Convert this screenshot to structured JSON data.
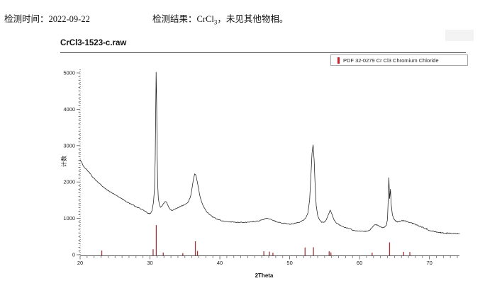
{
  "header": {
    "time_label": "检测时间：",
    "time_value": "2022-09-22",
    "result_label": "检测结果：",
    "result_formula_base": "CrCl",
    "result_formula_sub": "3",
    "result_suffix": "，未见其他物相。"
  },
  "chart": {
    "title": "CrCl3-1523-c.raw",
    "colors": {
      "curve": "#1a1a1a",
      "reference_sticks": "#a8343a",
      "legend_marker": "#cf2030",
      "axis": "#555555",
      "tick_text": "#222222"
    }
  },
  "chart_data": {
    "type": "line",
    "title": "CrCl3-1523-c.raw",
    "xlabel": "2Theta",
    "ylabel": "计数",
    "xlim": [
      20,
      74.3
    ],
    "ylim": [
      0,
      5000
    ],
    "x_major_ticks": [
      20,
      30,
      40,
      50,
      60,
      70
    ],
    "x_minor_step": 1,
    "y_major_ticks": [
      0,
      1000,
      2000,
      3000,
      4000,
      5000
    ],
    "y_minor_step": 100,
    "grid": false,
    "legend": [
      "PDF 32-0279 Cr Cl3 Chromium Chloride"
    ],
    "legend_position": "top-right",
    "series": [
      {
        "name": "CrCl3-1523-c.raw",
        "type": "line",
        "points": [
          [
            20,
            2620
          ],
          [
            20.3,
            2500
          ],
          [
            20.6,
            2400
          ],
          [
            21,
            2330
          ],
          [
            21.4,
            2240
          ],
          [
            21.8,
            2140
          ],
          [
            22.2,
            2060
          ],
          [
            22.6,
            1980
          ],
          [
            23,
            1920
          ],
          [
            23.4,
            1850
          ],
          [
            23.8,
            1790
          ],
          [
            24.2,
            1740
          ],
          [
            24.6,
            1700
          ],
          [
            25,
            1660
          ],
          [
            25.4,
            1610
          ],
          [
            25.8,
            1560
          ],
          [
            26.2,
            1510
          ],
          [
            26.6,
            1460
          ],
          [
            27,
            1420
          ],
          [
            27.4,
            1380
          ],
          [
            27.8,
            1340
          ],
          [
            28.2,
            1300
          ],
          [
            28.6,
            1270
          ],
          [
            29,
            1230
          ],
          [
            29.4,
            1180
          ],
          [
            29.8,
            1130
          ],
          [
            30.1,
            1140
          ],
          [
            30.3,
            1220
          ],
          [
            30.5,
            1450
          ],
          [
            30.65,
            1800
          ],
          [
            30.75,
            2600
          ],
          [
            30.82,
            3900
          ],
          [
            30.88,
            5020
          ],
          [
            30.95,
            4200
          ],
          [
            31.02,
            2800
          ],
          [
            31.1,
            1950
          ],
          [
            31.2,
            1550
          ],
          [
            31.35,
            1380
          ],
          [
            31.5,
            1310
          ],
          [
            31.7,
            1330
          ],
          [
            31.9,
            1400
          ],
          [
            32.1,
            1450
          ],
          [
            32.3,
            1460
          ],
          [
            32.5,
            1390
          ],
          [
            32.7,
            1310
          ],
          [
            32.9,
            1250
          ],
          [
            33.1,
            1220
          ],
          [
            33.4,
            1240
          ],
          [
            33.7,
            1270
          ],
          [
            34,
            1300
          ],
          [
            34.4,
            1330
          ],
          [
            34.8,
            1360
          ],
          [
            35.2,
            1400
          ],
          [
            35.5,
            1460
          ],
          [
            35.8,
            1600
          ],
          [
            36,
            1800
          ],
          [
            36.2,
            2050
          ],
          [
            36.4,
            2230
          ],
          [
            36.6,
            2160
          ],
          [
            36.8,
            1980
          ],
          [
            37,
            1760
          ],
          [
            37.2,
            1560
          ],
          [
            37.5,
            1400
          ],
          [
            37.8,
            1280
          ],
          [
            38.1,
            1190
          ],
          [
            38.5,
            1110
          ],
          [
            39,
            1040
          ],
          [
            39.5,
            990
          ],
          [
            40,
            950
          ],
          [
            40.5,
            930
          ],
          [
            41,
            915
          ],
          [
            41.5,
            905
          ],
          [
            42,
            900
          ],
          [
            42.5,
            895
          ],
          [
            43,
            890
          ],
          [
            43.5,
            890
          ],
          [
            44,
            895
          ],
          [
            44.5,
            905
          ],
          [
            45,
            915
          ],
          [
            45.5,
            930
          ],
          [
            46,
            950
          ],
          [
            46.4,
            990
          ],
          [
            46.8,
            1005
          ],
          [
            47.2,
            985
          ],
          [
            47.6,
            950
          ],
          [
            48,
            915
          ],
          [
            48.5,
            885
          ],
          [
            49,
            865
          ],
          [
            49.5,
            855
          ],
          [
            50,
            845
          ],
          [
            50.5,
            855
          ],
          [
            51,
            875
          ],
          [
            51.5,
            900
          ],
          [
            52,
            950
          ],
          [
            52.3,
            1010
          ],
          [
            52.6,
            1150
          ],
          [
            52.85,
            1500
          ],
          [
            53.05,
            2200
          ],
          [
            53.2,
            2800
          ],
          [
            53.35,
            3020
          ],
          [
            53.5,
            2600
          ],
          [
            53.65,
            1900
          ],
          [
            53.8,
            1350
          ],
          [
            54,
            1080
          ],
          [
            54.3,
            950
          ],
          [
            54.6,
            890
          ],
          [
            54.9,
            890
          ],
          [
            55.2,
            950
          ],
          [
            55.5,
            1080
          ],
          [
            55.8,
            1230
          ],
          [
            56.05,
            1120
          ],
          [
            56.3,
            980
          ],
          [
            56.6,
            890
          ],
          [
            57,
            830
          ],
          [
            57.4,
            790
          ],
          [
            57.8,
            760
          ],
          [
            58.2,
            735
          ],
          [
            58.6,
            715
          ],
          [
            59,
            680
          ],
          [
            59.5,
            665
          ],
          [
            60,
            655
          ],
          [
            60.5,
            645
          ],
          [
            61,
            640
          ],
          [
            61.4,
            670
          ],
          [
            61.8,
            740
          ],
          [
            62.1,
            810
          ],
          [
            62.4,
            830
          ],
          [
            62.7,
            795
          ],
          [
            63,
            760
          ],
          [
            63.3,
            745
          ],
          [
            63.6,
            755
          ],
          [
            63.85,
            820
          ],
          [
            64,
            980
          ],
          [
            64.1,
            1500
          ],
          [
            64.2,
            2120
          ],
          [
            64.3,
            1550
          ],
          [
            64.42,
            1800
          ],
          [
            64.55,
            1350
          ],
          [
            64.7,
            1100
          ],
          [
            64.9,
            990
          ],
          [
            65.1,
            940
          ],
          [
            65.4,
            900
          ],
          [
            65.7,
            920
          ],
          [
            66,
            930
          ],
          [
            66.3,
            940
          ],
          [
            66.6,
            925
          ],
          [
            66.9,
            910
          ],
          [
            67.2,
            890
          ],
          [
            67.6,
            860
          ],
          [
            68,
            830
          ],
          [
            68.4,
            800
          ],
          [
            68.8,
            770
          ],
          [
            69.2,
            740
          ],
          [
            69.6,
            710
          ],
          [
            70,
            665
          ],
          [
            70.4,
            650
          ],
          [
            71,
            625
          ],
          [
            71.6,
            610
          ],
          [
            72,
            598
          ],
          [
            72.5,
            592
          ],
          [
            73,
            588
          ],
          [
            73.5,
            584
          ],
          [
            74,
            580
          ],
          [
            74.3,
            590
          ]
        ]
      },
      {
        "name": "PDF 32-0279 Cr Cl3 Chromium Chloride",
        "type": "sticks",
        "points": [
          [
            23.1,
            115
          ],
          [
            30.45,
            150
          ],
          [
            30.9,
            815
          ],
          [
            31.9,
            60
          ],
          [
            34.7,
            45
          ],
          [
            36.5,
            370
          ],
          [
            36.8,
            105
          ],
          [
            46.3,
            95
          ],
          [
            47.1,
            85
          ],
          [
            47.6,
            55
          ],
          [
            52.2,
            200
          ],
          [
            53.4,
            205
          ],
          [
            55.65,
            95
          ],
          [
            55.9,
            65
          ],
          [
            61.8,
            55
          ],
          [
            64.3,
            340
          ],
          [
            66.3,
            80
          ],
          [
            67.2,
            75
          ]
        ]
      }
    ]
  }
}
